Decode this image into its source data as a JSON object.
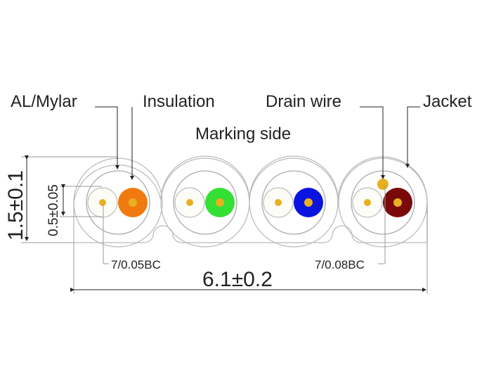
{
  "labels": {
    "al_mylar": "AL/Mylar",
    "insulation": "Insulation",
    "drain_wire": "Drain wire",
    "jacket": "Jacket",
    "marking_side": "Marking side",
    "conductor_left": "7/0.05BC",
    "conductor_right": "7/0.08BC"
  },
  "dimensions": {
    "width": "6.1±0.2",
    "height": "1.5±0.1",
    "conductor": "0.5±0.05"
  },
  "colors": {
    "pair1": "#f07a10",
    "pair2": "#33e033",
    "pair3": "#0a14e0",
    "pair4": "#7a0a0a",
    "conductor": "#e8b020",
    "line": "#aaaaaa"
  }
}
